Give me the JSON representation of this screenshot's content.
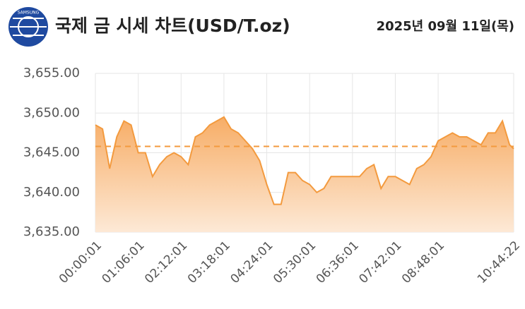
{
  "header": {
    "logo_text": "SAMSUNG",
    "title": "국제 금 시세 차트(USD/T.oz)",
    "date": "2025년 09월 11일(목)"
  },
  "chart_data": {
    "type": "area",
    "color": "#f39a3e",
    "grid": true,
    "x": [
      "00:00:01",
      "00:11:01",
      "00:22:01",
      "00:33:01",
      "00:44:01",
      "00:55:01",
      "01:06:01",
      "01:17:01",
      "01:28:01",
      "01:39:01",
      "01:50:01",
      "02:01:01",
      "02:12:01",
      "02:23:01",
      "02:34:01",
      "02:45:01",
      "02:56:01",
      "03:07:01",
      "03:18:01",
      "03:29:01",
      "03:40:01",
      "03:51:01",
      "04:02:01",
      "04:13:01",
      "04:24:01",
      "04:35:01",
      "04:46:01",
      "04:57:01",
      "05:08:01",
      "05:19:01",
      "05:30:01",
      "05:41:01",
      "05:52:01",
      "06:03:01",
      "06:14:01",
      "06:25:01",
      "06:36:01",
      "06:47:01",
      "06:58:01",
      "07:09:01",
      "07:20:01",
      "07:31:01",
      "07:42:01",
      "07:53:01",
      "08:04:01",
      "08:15:01",
      "08:26:01",
      "08:37:01",
      "08:48:01",
      "08:59:01",
      "09:10:01",
      "09:21:01",
      "09:32:01",
      "09:43:01",
      "09:54:01",
      "10:05:01",
      "10:16:01",
      "10:27:01",
      "10:38:01",
      "10:44:22"
    ],
    "values": [
      3648.5,
      3648,
      3643,
      3647,
      3649,
      3648.5,
      3645,
      3645,
      3642,
      3643.5,
      3644.5,
      3645,
      3644.5,
      3643.5,
      3647,
      3647.5,
      3648.5,
      3649,
      3649.5,
      3648,
      3647.5,
      3646.5,
      3645.5,
      3644,
      3641,
      3638.5,
      3638.5,
      3642.5,
      3642.5,
      3641.5,
      3641,
      3640,
      3640.5,
      3642,
      3642,
      3642,
      3642,
      3642,
      3643,
      3643.5,
      3640.5,
      3642,
      3642,
      3641.5,
      3641,
      3643,
      3643.5,
      3644.5,
      3646.5,
      3647,
      3647.5,
      3647,
      3647,
      3646.5,
      3646,
      3647.5,
      3647.5,
      3649,
      3646,
      3645.5
    ],
    "xticks": [
      "00:00:01",
      "01:06:01",
      "02:12:01",
      "03:18:01",
      "04:24:01",
      "05:30:01",
      "06:36:01",
      "07:42:01",
      "08:48:01",
      "10:44:22"
    ],
    "ylim": [
      3635,
      3655
    ],
    "yticks": [
      {
        "value": 3635,
        "label": "3,635.00"
      },
      {
        "value": 3640,
        "label": "3,640.00"
      },
      {
        "value": 3645,
        "label": "3,645.00"
      },
      {
        "value": 3650,
        "label": "3,650.00"
      },
      {
        "value": 3655,
        "label": "3,655.00"
      }
    ],
    "reference_line": 3645.8
  }
}
